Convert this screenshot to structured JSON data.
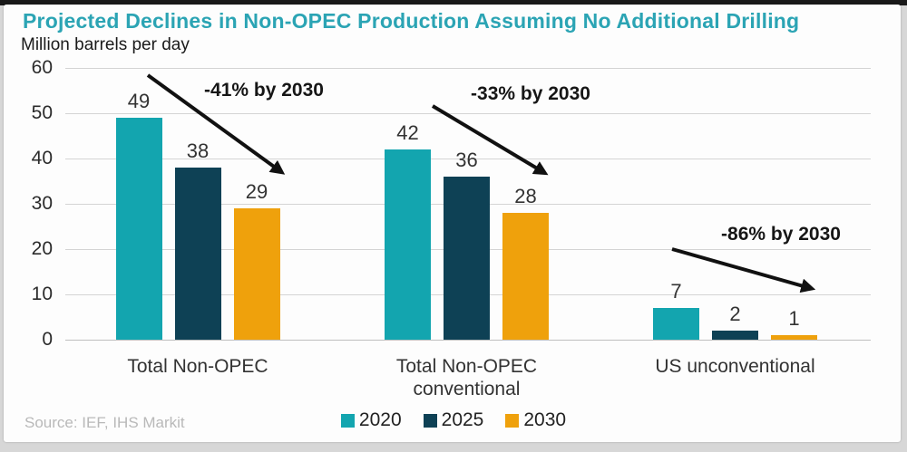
{
  "source": "Source: IEF, IHS Markit",
  "colors": {
    "title_accent": "#2ba4b4",
    "series_2020": "#13a5af",
    "series_2025": "#0e4155",
    "series_2030": "#efa10c",
    "arrow": "#111111"
  },
  "chart_data": {
    "type": "bar",
    "title": "Projected Declines in Non-OPEC Production Assuming No Additional Drilling",
    "units": "Million barrels per day",
    "categories": [
      "Total Non-OPEC",
      "Total Non-OPEC\nconventional",
      "US unconventional"
    ],
    "series": [
      {
        "name": "2020",
        "color": "#13a5af",
        "values": [
          49,
          42,
          7
        ]
      },
      {
        "name": "2025",
        "color": "#0e4155",
        "values": [
          38,
          36,
          2
        ]
      },
      {
        "name": "2030",
        "color": "#efa10c",
        "values": [
          29,
          28,
          1
        ]
      }
    ],
    "annotations": [
      "-41% by 2030",
      "-33% by 2030",
      "-86% by 2030"
    ],
    "yticks": [
      60,
      50,
      40,
      30,
      20,
      10,
      0
    ],
    "ylim": [
      0,
      60
    ],
    "grid": true,
    "legend_position": "bottom"
  }
}
